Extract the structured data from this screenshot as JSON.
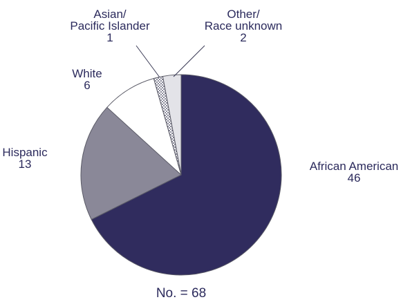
{
  "chart_data": {
    "type": "pie",
    "slices": [
      {
        "label_lines": [
          "African American"
        ],
        "value": 46,
        "value_label": "46",
        "color": "#302c5e",
        "pattern": "solid"
      },
      {
        "label_lines": [
          "Hispanic"
        ],
        "value": 13,
        "value_label": "13",
        "color": "#8a8898",
        "pattern": "solid"
      },
      {
        "label_lines": [
          "White"
        ],
        "value": 6,
        "value_label": "6",
        "color": "#ffffff",
        "pattern": "solid"
      },
      {
        "label_lines": [
          "Asian/",
          "Pacific Islander"
        ],
        "value": 1,
        "value_label": "1",
        "color": "#ffffff",
        "pattern": "dots"
      },
      {
        "label_lines": [
          "Other/",
          "Race unknown"
        ],
        "value": 2,
        "value_label": "2",
        "color": "#e3e3e8",
        "pattern": "solid"
      }
    ],
    "start_angle_deg": 0,
    "direction": "clockwise",
    "total_note": "No. = 68",
    "text_color": "#2b2a5c",
    "outline_color": "#5a5a66"
  }
}
